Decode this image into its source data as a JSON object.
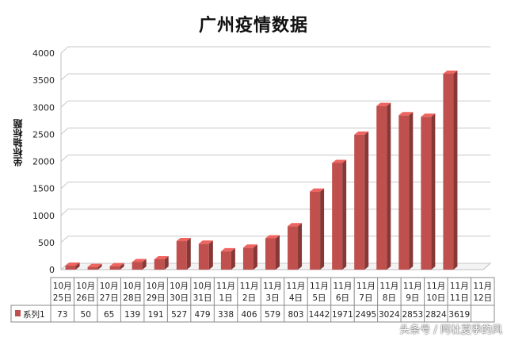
{
  "chart_data": {
    "type": "bar",
    "title": "广州疫情数据",
    "ylabel": "坐标轴标题",
    "xlabel": "",
    "ylim": [
      0,
      4000
    ],
    "yticks": [
      0,
      500,
      1000,
      1500,
      2000,
      2500,
      3000,
      3500,
      4000
    ],
    "grid": true,
    "style": "3d-column",
    "categories": [
      [
        "10月",
        "25日"
      ],
      [
        "10月",
        "26日"
      ],
      [
        "10月",
        "27日"
      ],
      [
        "10月",
        "28日"
      ],
      [
        "10月",
        "29日"
      ],
      [
        "10月",
        "30日"
      ],
      [
        "10月",
        "31日"
      ],
      [
        "11月",
        "1日"
      ],
      [
        "11月",
        "2日"
      ],
      [
        "11月",
        "3日"
      ],
      [
        "11月",
        "4日"
      ],
      [
        "11月",
        "5日"
      ],
      [
        "11月",
        "6日"
      ],
      [
        "11月",
        "7日"
      ],
      [
        "11月",
        "8日"
      ],
      [
        "11月",
        "9日"
      ],
      [
        "11月",
        "10日"
      ],
      [
        "11月",
        "11日"
      ],
      [
        "11月",
        "12日"
      ]
    ],
    "series": [
      {
        "name": "系列1",
        "color": "#c0504d",
        "values": [
          73,
          50,
          65,
          139,
          191,
          527,
          479,
          338,
          406,
          579,
          803,
          1442,
          1971,
          2495,
          3024,
          2853,
          2824,
          3619,
          null
        ],
        "labels": [
          "73",
          "50",
          "65",
          "139",
          "191",
          "527",
          "479",
          "338",
          "406",
          "579",
          "803",
          "1442",
          "1971",
          "2495",
          "3024",
          "2853",
          "2824",
          "3619",
          ""
        ]
      }
    ]
  },
  "watermark": "头条号 / 阿杜夏季的风"
}
